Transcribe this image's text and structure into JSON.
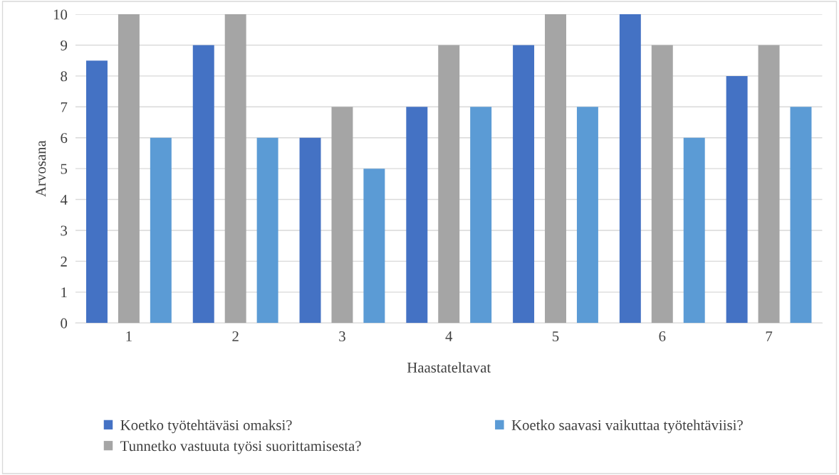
{
  "chart_data": {
    "type": "bar",
    "xlabel": "Haastateltavat",
    "ylabel": "Arvosana",
    "categories": [
      "1",
      "2",
      "3",
      "4",
      "5",
      "6",
      "7"
    ],
    "series": [
      {
        "name": "Koetko työtehtäväsi omaksi?",
        "color": "#4472c4",
        "values": [
          8.5,
          9,
          6,
          7,
          9,
          10,
          8
        ]
      },
      {
        "name": "Tunnetko vastuuta työsi suorittamisesta?",
        "color": "#a5a5a5",
        "values": [
          10,
          10,
          7,
          9,
          10,
          9,
          9
        ]
      },
      {
        "name": "Koetko saavasi vaikuttaa työtehtäviisi?",
        "color": "#5b9bd5",
        "values": [
          6,
          6,
          5,
          7,
          7,
          6,
          7
        ]
      }
    ],
    "ylim": [
      0,
      10
    ],
    "yticks": [
      0,
      1,
      2,
      3,
      4,
      5,
      6,
      7,
      8,
      9,
      10
    ],
    "grid": "y",
    "legend": "bottom"
  }
}
